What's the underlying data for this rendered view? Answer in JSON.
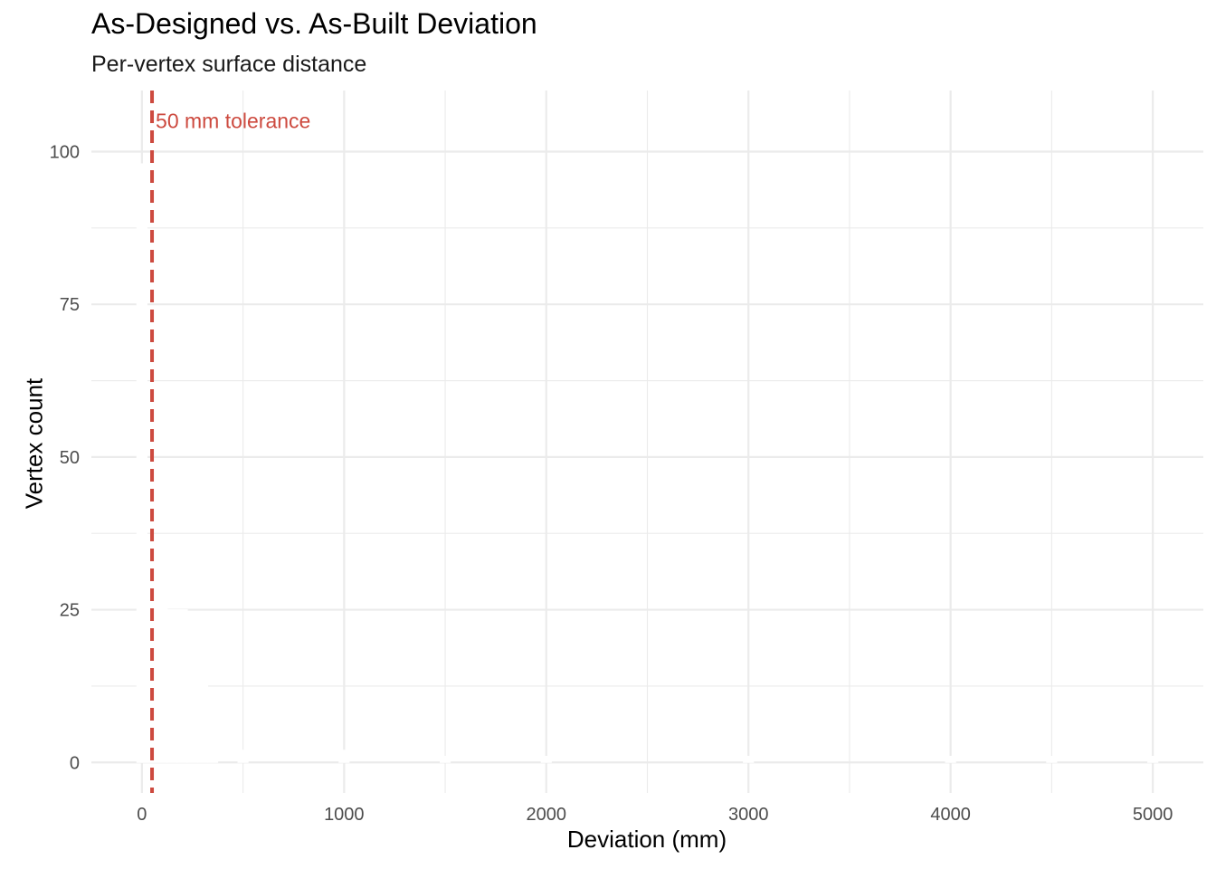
{
  "chart_data": {
    "type": "bar",
    "title": "As-Designed vs. As-Built Deviation",
    "subtitle": "Per-vertex surface distance",
    "xlabel": "Deviation (mm)",
    "ylabel": "Vertex count",
    "xlim": [
      -250,
      5250
    ],
    "ylim": [
      -5,
      110
    ],
    "x_ticks": [
      0,
      1000,
      2000,
      3000,
      4000,
      5000
    ],
    "y_ticks": [
      0,
      25,
      50,
      75,
      100
    ],
    "grid": true,
    "bins": [
      {
        "x": 0,
        "count": 98
      },
      {
        "x": 50,
        "count": 37
      },
      {
        "x": 100,
        "count": 37
      },
      {
        "x": 150,
        "count": 25
      },
      {
        "x": 200,
        "count": 25
      },
      {
        "x": 250,
        "count": 13
      },
      {
        "x": 300,
        "count": 13
      },
      {
        "x": 350,
        "count": 1
      },
      {
        "x": 500,
        "count": 2
      },
      {
        "x": 1000,
        "count": 2
      },
      {
        "x": 1500,
        "count": 1
      },
      {
        "x": 2000,
        "count": 1
      },
      {
        "x": 3000,
        "count": 1
      },
      {
        "x": 4000,
        "count": 1
      },
      {
        "x": 4500,
        "count": 1
      },
      {
        "x": 5000,
        "count": 1
      }
    ],
    "bar_color": "#ffffff",
    "tolerance": {
      "value": 50,
      "label": "50 mm tolerance",
      "color": "#cd4a3f"
    }
  }
}
